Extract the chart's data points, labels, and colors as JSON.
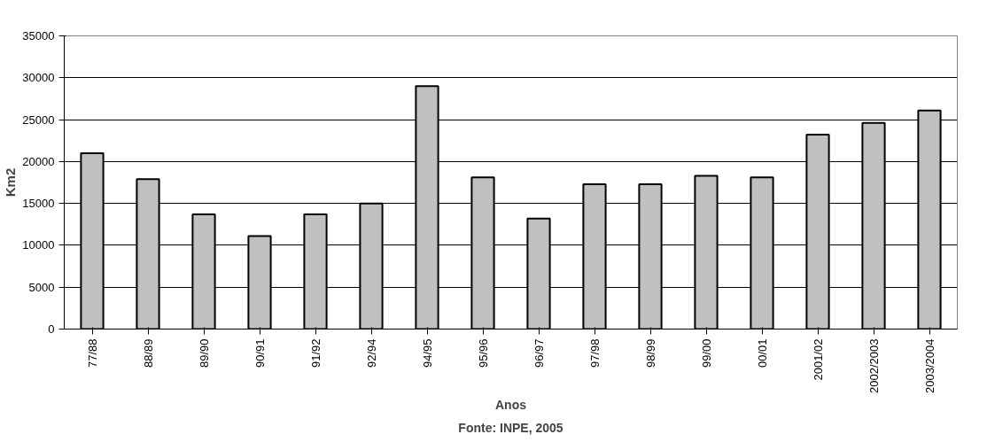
{
  "chart_data": {
    "type": "bar",
    "categories": [
      "77/88",
      "88/89",
      "89/90",
      "90/91",
      "91/92",
      "92/94",
      "94/95",
      "95/96",
      "96/97",
      "97/98",
      "98/99",
      "99/00",
      "00/01",
      "2001/02",
      "2002/2003",
      "2003/2004"
    ],
    "values": [
      21000,
      17900,
      13700,
      11100,
      13700,
      15000,
      29000,
      18100,
      13200,
      17300,
      17300,
      18300,
      18100,
      23200,
      24600,
      26100
    ],
    "color": "#c0c0c0",
    "ylabel": "Km2",
    "xlabel": "Anos",
    "annotations": [
      "Fonte: INPE, 2005"
    ],
    "ylim": [
      0,
      35000
    ],
    "yticks": [
      0,
      5000,
      10000,
      15000,
      20000,
      25000,
      30000,
      35000
    ],
    "grid": "y"
  }
}
